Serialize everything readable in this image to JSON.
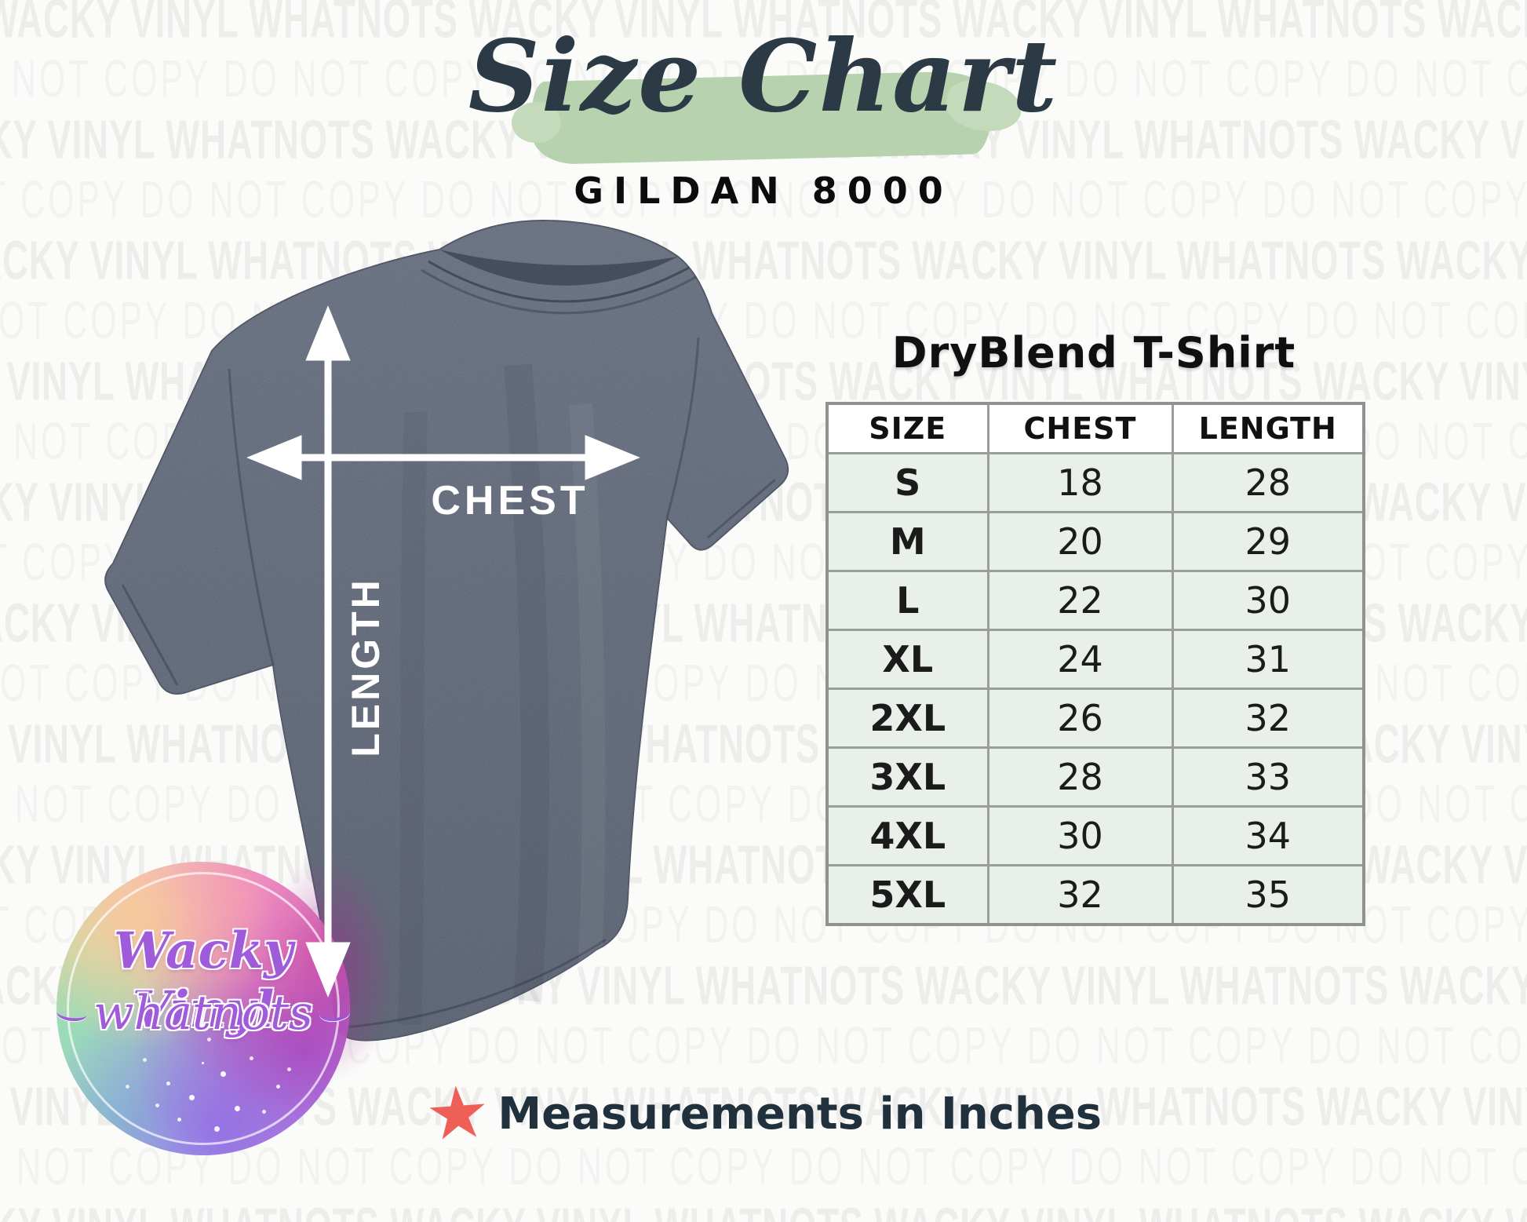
{
  "header": {
    "title": "Size Chart",
    "product_code": "GILDAN 8000"
  },
  "product": {
    "name": "DryBlend T-Shirt"
  },
  "size_table": {
    "columns": [
      "SIZE",
      "CHEST",
      "LENGTH"
    ],
    "rows": [
      [
        "S",
        "18",
        "28"
      ],
      [
        "M",
        "20",
        "29"
      ],
      [
        "L",
        "22",
        "30"
      ],
      [
        "XL",
        "24",
        "31"
      ],
      [
        "2XL",
        "26",
        "32"
      ],
      [
        "3XL",
        "28",
        "33"
      ],
      [
        "4XL",
        "30",
        "34"
      ],
      [
        "5XL",
        "32",
        "35"
      ]
    ]
  },
  "diagram": {
    "chest_label": "CHEST",
    "length_label": "LENGTH"
  },
  "footer": {
    "note": "Measurements in Inches",
    "star_icon": "star-icon",
    "star_glyph": "★"
  },
  "logo": {
    "line1": "Wacky Vinyl",
    "line2": "whatnots"
  },
  "watermark": {
    "brand_text": "WACKY VINYL WHATNOTS",
    "copy_text": "DO NOT COPY"
  },
  "colors": {
    "brush_green": "#b6d2ae",
    "title_ink": "#2b3a45",
    "table_row_green": "#e9f0e9",
    "table_border": "#9a9e9a",
    "star_red": "#ee5f58",
    "footer_ink": "#20303d",
    "shirt_heather": "#586070",
    "logo_purple": "#9d55da"
  },
  "chart_data": {
    "type": "table",
    "title": "Size Chart",
    "subtitle": "GILDAN 8000",
    "product": "DryBlend T-Shirt",
    "columns": [
      "SIZE",
      "CHEST",
      "LENGTH"
    ],
    "rows": [
      [
        "S",
        18,
        28
      ],
      [
        "M",
        20,
        29
      ],
      [
        "L",
        22,
        30
      ],
      [
        "XL",
        24,
        31
      ],
      [
        "2XL",
        26,
        32
      ],
      [
        "3XL",
        28,
        33
      ],
      [
        "4XL",
        30,
        34
      ],
      [
        "5XL",
        32,
        35
      ]
    ],
    "units": "inches"
  }
}
